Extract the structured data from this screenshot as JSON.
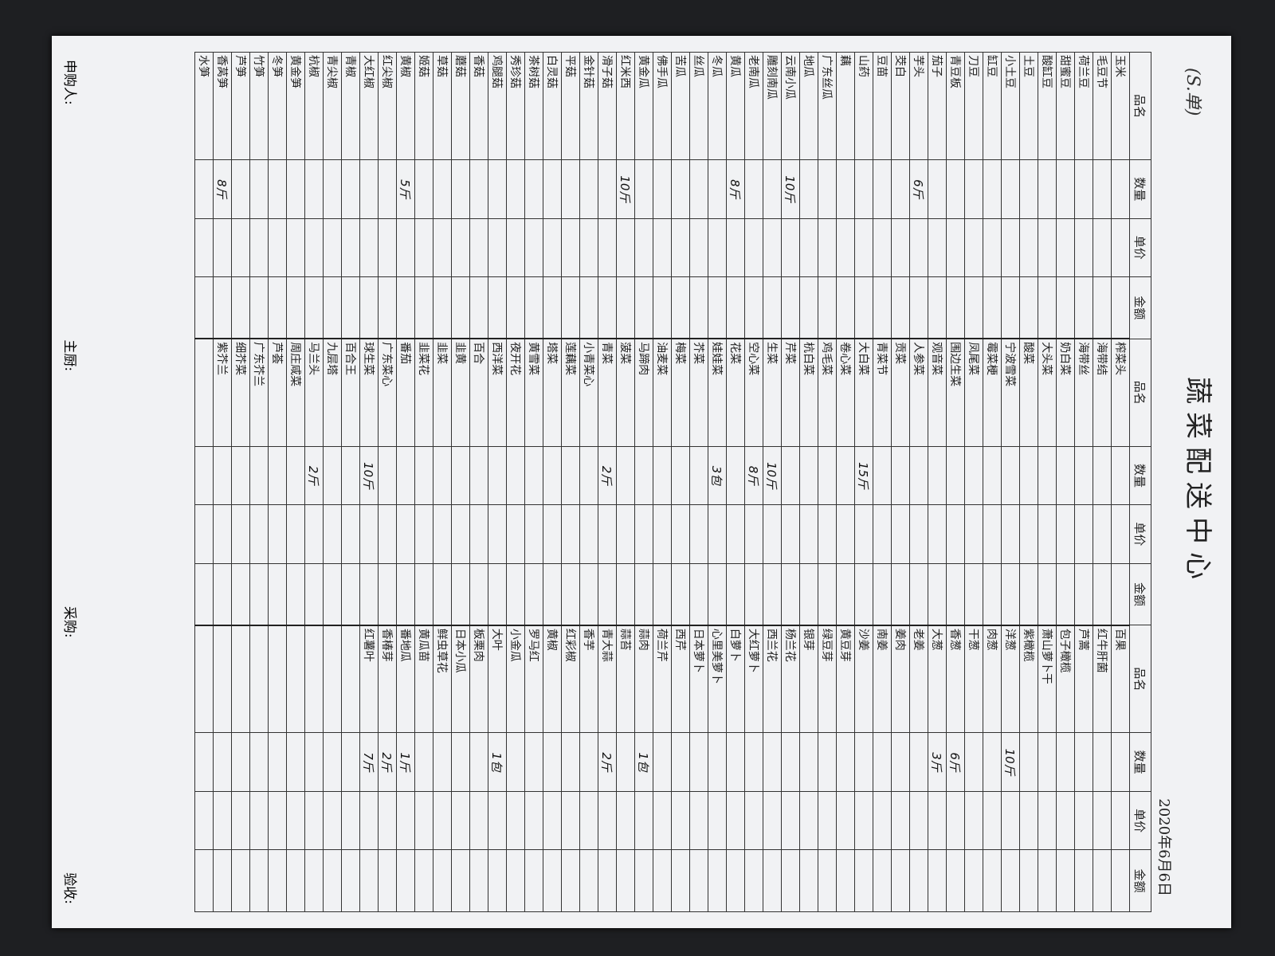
{
  "title": "蔬菜配送中心",
  "note": "(S.单)",
  "date": "2020年6月6日",
  "columns": [
    "品名",
    "数量",
    "单价",
    "金额"
  ],
  "groups": [
    {
      "items": [
        {
          "name": "玉米"
        },
        {
          "name": "毛豆节"
        },
        {
          "name": "荷兰豆"
        },
        {
          "name": "甜蜜豆"
        },
        {
          "name": "酸缸豆"
        },
        {
          "name": "土豆"
        },
        {
          "name": "小土豆"
        },
        {
          "name": "缸豆"
        },
        {
          "name": "刀豆"
        },
        {
          "name": "青豆板"
        },
        {
          "name": "茄子"
        },
        {
          "name": "芋头",
          "qty": "6斤"
        },
        {
          "name": "茭白"
        },
        {
          "name": "豆苗"
        },
        {
          "name": "山药"
        },
        {
          "name": "藕"
        },
        {
          "name": "广东丝瓜"
        },
        {
          "name": "地瓜"
        },
        {
          "name": "云南小瓜",
          "qty": "10斤"
        },
        {
          "name": "雕刻南瓜"
        },
        {
          "name": "老南瓜"
        },
        {
          "name": "黄瓜",
          "qty": "8斤"
        },
        {
          "name": "冬瓜"
        },
        {
          "name": "丝瓜"
        },
        {
          "name": "苦瓜"
        },
        {
          "name": "佛手瓜"
        },
        {
          "name": "黄金瓜"
        },
        {
          "name": "红米西",
          "qty": "10斤"
        },
        {
          "name": "滑子菇"
        },
        {
          "name": "金针菇"
        },
        {
          "name": "平菇"
        },
        {
          "name": "白灵菇"
        },
        {
          "name": "茶树菇"
        },
        {
          "name": "秀珍菇"
        },
        {
          "name": "鸡腿菇"
        },
        {
          "name": "香菇"
        },
        {
          "name": "蘑菇"
        },
        {
          "name": "草菇"
        },
        {
          "name": "姬菇"
        },
        {
          "name": "黄椒",
          "qty": "5斤"
        },
        {
          "name": "红尖椒"
        },
        {
          "name": "大红椒"
        },
        {
          "name": "青椒"
        },
        {
          "name": "青尖椒"
        },
        {
          "name": "杭椒"
        },
        {
          "name": "黄金笋"
        },
        {
          "name": "冬笋"
        },
        {
          "name": "竹笋"
        },
        {
          "name": "芦笋"
        },
        {
          "name": "香莴笋",
          "qty": "8斤"
        },
        {
          "name": "水笋"
        }
      ]
    },
    {
      "items": [
        {
          "name": "榨菜头"
        },
        {
          "name": "海带结"
        },
        {
          "name": "海带丝"
        },
        {
          "name": "奶白菜"
        },
        {
          "name": "大头菜"
        },
        {
          "name": "酸菜"
        },
        {
          "name": "宁波雪菜"
        },
        {
          "name": "霉菜梗"
        },
        {
          "name": "凤尾菜"
        },
        {
          "name": "围边生菜"
        },
        {
          "name": "观音菜"
        },
        {
          "name": "人参菜"
        },
        {
          "name": "贡菜"
        },
        {
          "name": "青菜节"
        },
        {
          "name": "大白菜",
          "qty": "15斤"
        },
        {
          "name": "卷心菜"
        },
        {
          "name": "鸡毛菜"
        },
        {
          "name": "杭白菜"
        },
        {
          "name": "芹菜"
        },
        {
          "name": "生菜",
          "qty": "10斤"
        },
        {
          "name": "空心菜",
          "qty": "8斤"
        },
        {
          "name": "花菜"
        },
        {
          "name": "娃娃菜",
          "qty": "3包"
        },
        {
          "name": "芥菜"
        },
        {
          "name": "梅菜"
        },
        {
          "name": "油麦菜"
        },
        {
          "name": "马蹄肉"
        },
        {
          "name": "菠菜"
        },
        {
          "name": "青菜",
          "qty": "2斤"
        },
        {
          "name": "小青菜心"
        },
        {
          "name": "莲藕菜"
        },
        {
          "name": "塔菜"
        },
        {
          "name": "黄雪菜"
        },
        {
          "name": "夜开花"
        },
        {
          "name": "西洋菜"
        },
        {
          "name": "百合"
        },
        {
          "name": "韭黄"
        },
        {
          "name": "韭菜"
        },
        {
          "name": "韭菜花"
        },
        {
          "name": "番茄"
        },
        {
          "name": "广东菜心"
        },
        {
          "name": "球生菜",
          "qty": "10斤"
        },
        {
          "name": "百合王"
        },
        {
          "name": "九层塔"
        },
        {
          "name": "马兰头",
          "qty": "2斤"
        },
        {
          "name": "周庄咸菜"
        },
        {
          "name": "芦荟"
        },
        {
          "name": "广东芥兰"
        },
        {
          "name": "细芥菜"
        },
        {
          "name": "紫芥兰"
        }
      ]
    },
    {
      "items": [
        {
          "name": "百果"
        },
        {
          "name": "红牛肝菌"
        },
        {
          "name": "芦蒿"
        },
        {
          "name": "包子橄榄"
        },
        {
          "name": "萧山萝卜干"
        },
        {
          "name": "紫橄榄"
        },
        {
          "name": "洋葱",
          "qty": "10斤"
        },
        {
          "name": "肉葱"
        },
        {
          "name": "干葱"
        },
        {
          "name": "香葱",
          "qty": "6斤"
        },
        {
          "name": "大葱",
          "qty": "3斤"
        },
        {
          "name": "老姜"
        },
        {
          "name": "姜肉"
        },
        {
          "name": "南姜"
        },
        {
          "name": "沙姜"
        },
        {
          "name": "黄豆芽"
        },
        {
          "name": "绿豆芽"
        },
        {
          "name": "银芽"
        },
        {
          "name": "杨兰花"
        },
        {
          "name": "西兰花"
        },
        {
          "name": "大红萝卜"
        },
        {
          "name": "白萝卜"
        },
        {
          "name": "心里美萝卜"
        },
        {
          "name": "日本萝卜"
        },
        {
          "name": "西芹"
        },
        {
          "name": "荷兰芹"
        },
        {
          "name": "蒜肉",
          "qty": "1包"
        },
        {
          "name": "蒜苔"
        },
        {
          "name": "青大蒜",
          "qty": "2斤"
        },
        {
          "name": "香芋"
        },
        {
          "name": "红彩椒"
        },
        {
          "name": "黄椒"
        },
        {
          "name": "罗马红"
        },
        {
          "name": "小金瓜"
        },
        {
          "name": "大叶",
          "qty": "1包"
        },
        {
          "name": "板栗肉"
        },
        {
          "name": "日本小瓜"
        },
        {
          "name": "鲜虫草花"
        },
        {
          "name": "黄瓜苗"
        },
        {
          "name": "番地瓜",
          "qty": "1斤"
        },
        {
          "name": "香椿芽",
          "qty": "2斤"
        },
        {
          "name": "红薯叶",
          "qty": "7斤"
        }
      ]
    }
  ],
  "footer": [
    "申购人:",
    "主厨:",
    "采购:",
    "验收:"
  ]
}
